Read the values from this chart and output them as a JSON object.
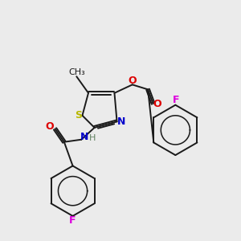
{
  "bg_color": "#ebebeb",
  "bond_color": "#1a1a1a",
  "S_color": "#b8b800",
  "N_color": "#0000cc",
  "O_color": "#dd0000",
  "F_color": "#dd00dd",
  "H_color": "#608060",
  "line_width": 1.4,
  "figsize": [
    3.0,
    3.0
  ],
  "dpi": 100,
  "xlim": [
    0,
    10
  ],
  "ylim": [
    0,
    10
  ]
}
